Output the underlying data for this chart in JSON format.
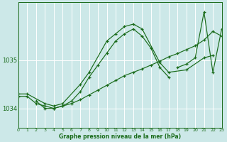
{
  "title": "Graphe pression niveau de la mer (hPa)",
  "bg_color": "#cce8e8",
  "grid_color": "#ffffff",
  "line_color": "#1a6b1a",
  "xlim": [
    0,
    23
  ],
  "ylim": [
    1033.6,
    1036.2
  ],
  "yticks": [
    1034,
    1035
  ],
  "xticks": [
    0,
    1,
    2,
    3,
    4,
    5,
    6,
    7,
    8,
    9,
    10,
    11,
    12,
    13,
    14,
    15,
    16,
    17,
    18,
    19,
    20,
    21,
    22,
    23
  ],
  "line1_x": [
    0,
    1,
    3,
    4,
    5,
    7,
    8,
    10,
    11,
    12,
    13,
    14,
    16,
    17,
    19,
    21,
    22
  ],
  "line1_y": [
    1034.3,
    1034.3,
    1034.1,
    1034.05,
    1034.1,
    1034.5,
    1034.75,
    1035.4,
    1035.55,
    1035.7,
    1035.75,
    1035.65,
    1034.95,
    1034.75,
    1034.8,
    1035.05,
    1035.1
  ],
  "line2_x": [
    2,
    3,
    4,
    5,
    6,
    7,
    8,
    9,
    10,
    11,
    12,
    13,
    14,
    15,
    16,
    17
  ],
  "line2_y": [
    1034.15,
    1034.0,
    1034.0,
    1034.05,
    1034.15,
    1034.35,
    1034.65,
    1034.9,
    1035.15,
    1035.4,
    1035.55,
    1035.65,
    1035.5,
    1035.25,
    1034.85,
    1034.65
  ],
  "line3_x": [
    0,
    1,
    2,
    3,
    4,
    5,
    6,
    7,
    8,
    9,
    10,
    11,
    12,
    13,
    14,
    15,
    16,
    17,
    18,
    19,
    20,
    21,
    22,
    23
  ],
  "line3_y": [
    1034.25,
    1034.25,
    1034.1,
    1034.05,
    1034.0,
    1034.05,
    1034.1,
    1034.18,
    1034.28,
    1034.38,
    1034.48,
    1034.58,
    1034.68,
    1034.75,
    1034.82,
    1034.9,
    1034.98,
    1035.07,
    1035.14,
    1035.22,
    1035.3,
    1035.42,
    1035.6,
    1035.5
  ],
  "line4_x": [
    18,
    19,
    20,
    21,
    22,
    23
  ],
  "line4_y": [
    1034.85,
    1034.92,
    1035.05,
    1036.0,
    1034.75,
    1035.65
  ]
}
